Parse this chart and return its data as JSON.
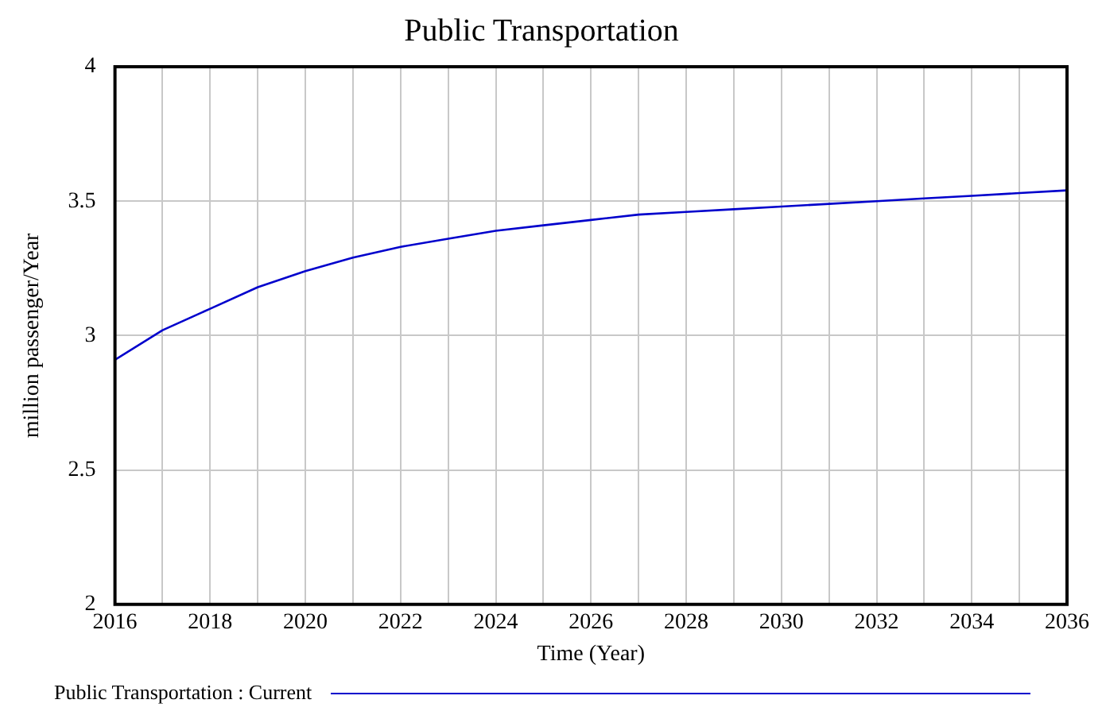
{
  "chart_data": {
    "type": "line",
    "title": "Public Transportation",
    "xlabel": "Time (Year)",
    "ylabel": "million passenger/Year",
    "x": [
      2016,
      2017,
      2018,
      2019,
      2020,
      2021,
      2022,
      2023,
      2024,
      2025,
      2026,
      2027,
      2028,
      2029,
      2030,
      2031,
      2032,
      2033,
      2034,
      2035,
      2036
    ],
    "series": [
      {
        "name": "Public Transportation : Current",
        "color": "#0000cc",
        "values": [
          2.91,
          3.02,
          3.1,
          3.18,
          3.24,
          3.29,
          3.33,
          3.36,
          3.39,
          3.41,
          3.43,
          3.45,
          3.46,
          3.47,
          3.48,
          3.49,
          3.5,
          3.51,
          3.52,
          3.53,
          3.54
        ]
      }
    ],
    "xlim": [
      2016,
      2036
    ],
    "xticks": [
      2016,
      {
        "value": 2017,
        "label": null
      },
      2018,
      {
        "value": 2019,
        "label": null
      },
      2020,
      {
        "value": 2021,
        "label": null
      },
      2022,
      {
        "value": 2023,
        "label": null
      },
      2024,
      {
        "value": 2025,
        "label": null
      },
      2026,
      {
        "value": 2027,
        "label": null
      },
      2028,
      {
        "value": 2029,
        "label": null
      },
      2030,
      {
        "value": 2031,
        "label": null
      },
      2032,
      {
        "value": 2033,
        "label": null
      },
      2034,
      {
        "value": 2035,
        "label": null
      },
      2036
    ],
    "ylim": [
      2,
      4
    ],
    "yticks": [
      2,
      2.5,
      3,
      3.5,
      4
    ],
    "grid": true,
    "legend": "bottom",
    "marker": "none",
    "line_style": "solid"
  }
}
